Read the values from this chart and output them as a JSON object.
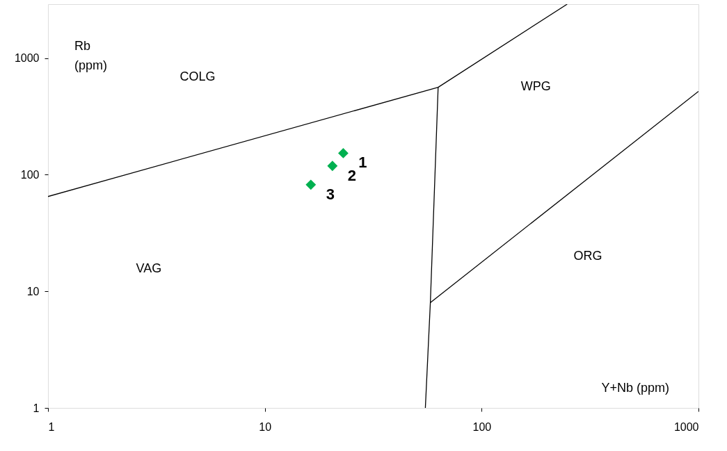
{
  "chart_data": {
    "type": "scatter",
    "xlabel": "Y+Nb (ppm)",
    "ylabel": "Rb (ppm)",
    "log": "xy",
    "xlim": [
      1,
      1000
    ],
    "ylim": [
      1,
      2900
    ],
    "xticks": [
      1,
      10,
      100,
      1000
    ],
    "yticks": [
      1,
      10,
      100,
      1000
    ],
    "grid": false,
    "series": [
      {
        "name": "1",
        "color": "#00b050",
        "marker": "diamond",
        "x": [
          23
        ],
        "values": [
          153
        ]
      },
      {
        "name": "2",
        "color": "#00b050",
        "marker": "diamond",
        "x": [
          20.5
        ],
        "values": [
          119
        ]
      },
      {
        "name": "3",
        "color": "#00b050",
        "marker": "diamond",
        "x": [
          16.3
        ],
        "values": [
          82
        ]
      },
      {
        "type": "line",
        "color": "#000000",
        "x": [
          1,
          63,
          248
        ],
        "values": [
          65,
          562,
          2900
        ]
      },
      {
        "type": "line",
        "color": "#000000",
        "x": [
          63,
          58,
          55
        ],
        "values": [
          562,
          8,
          1
        ]
      },
      {
        "type": "line",
        "color": "#000000",
        "x": [
          58,
          1000
        ],
        "values": [
          8,
          518
        ]
      }
    ],
    "annotations": [
      "COLG",
      "WPG",
      "VAG",
      "ORG"
    ]
  }
}
